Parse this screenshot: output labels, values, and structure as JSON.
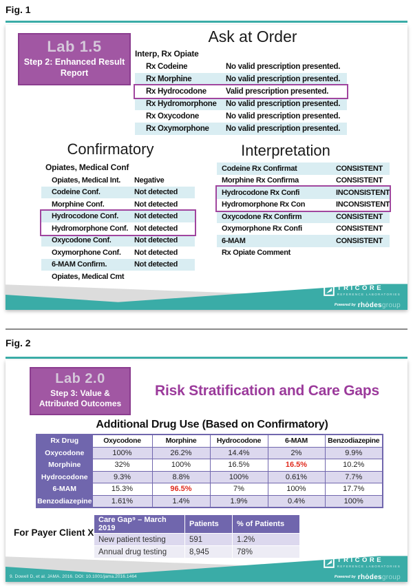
{
  "colors": {
    "teal": "#3aaca7",
    "light_blue": "#d9edf2",
    "purple_fill": "#a157a3",
    "purple_border": "#8b3d8f",
    "outline_purple": "#a0459e",
    "lab_title": "#d5c8da",
    "fig2_title": "#9b3a9b",
    "table_purple": "#7066ad",
    "lavender": "#dcd8ee",
    "lavender_light": "#edecf5",
    "red": "#e02a1d",
    "gray_band": "#dcdcdc"
  },
  "logo": {
    "name": "TRICORE",
    "tagline": "REFERENCE LABORATORIES",
    "powered_by": "Powered by",
    "brand": "rhȯdes",
    "brand_suffix": "group"
  },
  "fig1": {
    "label": "Fig. 1",
    "lab_box": {
      "title": "Lab 1.5",
      "subtitle": "Step 2: Enhanced Result Report"
    },
    "ask_at_order": {
      "title": "Ask at Order",
      "group_label": "Interp, Rx Opiate",
      "rows": [
        {
          "label": "Rx Codeine",
          "value": "No valid prescription presented.",
          "shaded": false,
          "highlight": false
        },
        {
          "label": "Rx Morphine",
          "value": "No valid prescription presented.",
          "shaded": true,
          "highlight": false
        },
        {
          "label": "Rx Hydrocodone",
          "value": "Valid prescription presented.",
          "shaded": false,
          "highlight": true
        },
        {
          "label": "Rx Hydromorphone",
          "value": "No valid prescription presented.",
          "shaded": true,
          "highlight": false
        },
        {
          "label": "Rx Oxycodone",
          "value": "No valid prescription presented.",
          "shaded": false,
          "highlight": false
        },
        {
          "label": "Rx Oxymorphone",
          "value": "No valid prescription presented.",
          "shaded": true,
          "highlight": false
        }
      ]
    },
    "confirmatory": {
      "title": "Confirmatory",
      "group_label": "Opiates, Medical Conf",
      "rows": [
        {
          "label": "Opiates, Medical Int.",
          "value": "Negative",
          "shaded": false,
          "highlight": false
        },
        {
          "label": "Codeine Conf.",
          "value": "Not detected",
          "shaded": true,
          "highlight": false
        },
        {
          "label": "Morphine Conf.",
          "value": "Not detected",
          "shaded": false,
          "highlight": false
        },
        {
          "label": "Hydrocodone Conf.",
          "value": "Not detected",
          "shaded": true,
          "highlight": true
        },
        {
          "label": "Hydromorphone Conf.",
          "value": "Not detected",
          "shaded": false,
          "highlight": true
        },
        {
          "label": "Oxycodone Conf.",
          "value": "Not detected",
          "shaded": true,
          "highlight": false
        },
        {
          "label": "Oxymorphone Conf.",
          "value": "Not detected",
          "shaded": false,
          "highlight": false
        },
        {
          "label": "6-MAM Confirm.",
          "value": "Not detected",
          "shaded": true,
          "highlight": false
        },
        {
          "label": "Opiates, Medical Cmt",
          "value": "",
          "shaded": false,
          "highlight": false
        }
      ]
    },
    "interpretation": {
      "title": "Interpretation",
      "rows": [
        {
          "label": "Codeine Rx Confirmat",
          "value": "CONSISTENT",
          "shaded": true,
          "highlight": false
        },
        {
          "label": "Morphine Rx Confirma",
          "value": "CONSISTENT",
          "shaded": false,
          "highlight": false
        },
        {
          "label": "Hydrocodone Rx Confi",
          "value": "INCONSISTENT",
          "shaded": true,
          "highlight": true
        },
        {
          "label": "Hydromorphone Rx Con",
          "value": "INCONSISTENT",
          "shaded": false,
          "highlight": true
        },
        {
          "label": "Oxycodone Rx Confirm",
          "value": "CONSISTENT",
          "shaded": true,
          "highlight": false
        },
        {
          "label": "Oxymorphone Rx Confi",
          "value": "CONSISTENT",
          "shaded": false,
          "highlight": false
        },
        {
          "label": "6-MAM",
          "value": "CONSISTENT",
          "shaded": true,
          "highlight": false
        },
        {
          "label": "Rx Opiate Comment",
          "value": "",
          "shaded": false,
          "highlight": false
        }
      ]
    }
  },
  "fig2": {
    "label": "Fig. 2",
    "lab_box": {
      "title": "Lab 2.0",
      "subtitle": "Step 3: Value & Attributed Outcomes"
    },
    "title": "Risk Stratification and Care Gaps",
    "drug_table": {
      "title": "Additional Drug Use (Based on Confirmatory)",
      "corner_header": "Rx Drug",
      "col_headers": [
        "Oxycodone",
        "Morphine",
        "Hydrocodone",
        "6-MAM",
        "Benzodiazepine"
      ],
      "rows": [
        {
          "drug": "Oxycodone",
          "values": [
            "100%",
            "26.2%",
            "14.4%",
            "2%",
            "9.9%"
          ],
          "red": []
        },
        {
          "drug": "Morphine",
          "values": [
            "32%",
            "100%",
            "16.5%",
            "16.5%",
            "10.2%"
          ],
          "red": [
            3
          ]
        },
        {
          "drug": "Hydrocodone",
          "values": [
            "9.3%",
            "8.8%",
            "100%",
            "0.61%",
            "7.7%"
          ],
          "red": []
        },
        {
          "drug": "6-MAM",
          "values": [
            "15.3%",
            "96.5%",
            "7%",
            "100%",
            "17.7%"
          ],
          "red": [
            1
          ]
        },
        {
          "drug": "Benzodiazepine",
          "values": [
            "1.61%",
            "1.4%",
            "1.9%",
            "0.4%",
            "100%"
          ],
          "red": []
        }
      ]
    },
    "payer_label": "For Payer Client X:",
    "care_gap_table": {
      "headers": [
        "Care Gap⁹ – March 2019",
        "Patients",
        "% of Patients"
      ],
      "rows": [
        [
          "New patient testing",
          "591",
          "1.2%"
        ],
        [
          "Annual drug testing",
          "8,945",
          "78%"
        ]
      ]
    },
    "citation": "9. Dowell D, et al. JAMA. 2016. DOI: 10.1001/jama.2016.1464"
  }
}
